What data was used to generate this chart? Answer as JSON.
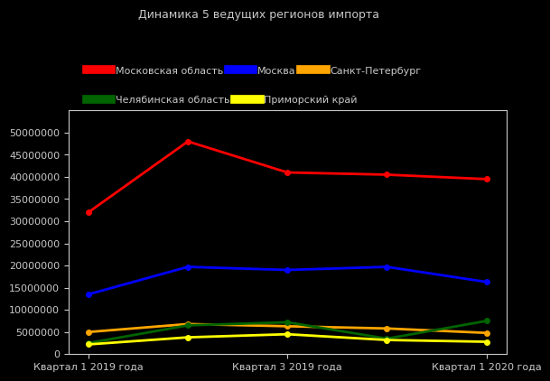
{
  "title": "Динамика 5 ведущих регионов импорта",
  "background_color": "#000000",
  "text_color": "#c8c8c8",
  "x_tick_positions": [
    0,
    1,
    2,
    3,
    4
  ],
  "x_tick_labels": [
    "Квартал 1 2019 года",
    "Квартал 3 2019 года",
    "Квартал 1 2020 года"
  ],
  "x_tick_indices": [
    0,
    2,
    4
  ],
  "ylim": [
    0,
    55000000
  ],
  "yticks": [
    0,
    5000000,
    10000000,
    15000000,
    20000000,
    25000000,
    30000000,
    35000000,
    40000000,
    45000000,
    50000000
  ],
  "series": [
    {
      "name": "Московская область",
      "color": "#ff0000",
      "values": [
        32000000,
        48000000,
        41000000,
        40500000,
        39500000
      ]
    },
    {
      "name": "Москва",
      "color": "#0000ff",
      "values": [
        13500000,
        19700000,
        19000000,
        19700000,
        16300000
      ]
    },
    {
      "name": "Санкт-Петербург",
      "color": "#ffa500",
      "values": [
        5000000,
        6800000,
        6300000,
        5800000,
        4800000
      ]
    },
    {
      "name": "Челябинская область",
      "color": "#006400",
      "values": [
        2500000,
        6500000,
        7200000,
        3500000,
        7500000
      ]
    },
    {
      "name": "Приморский край",
      "color": "#ffff00",
      "values": [
        2200000,
        3800000,
        4500000,
        3200000,
        2800000
      ]
    }
  ],
  "title_fontsize": 9,
  "legend_fontsize": 8,
  "tick_fontsize": 8,
  "marker": "o",
  "markersize": 4,
  "linewidth": 2,
  "legend_row1": [
    "Московская область",
    "Москва",
    "Санкт-Петербург"
  ],
  "legend_row2": [
    "Челябинская область",
    "Приморский край"
  ]
}
